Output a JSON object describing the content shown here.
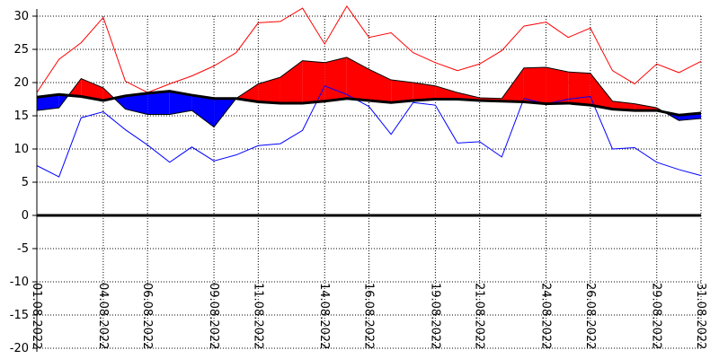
{
  "chart_data": {
    "type": "area",
    "title": "",
    "xlabel": "",
    "ylabel": "",
    "ylim": [
      -20,
      30
    ],
    "yticks": [
      -20,
      -15,
      -10,
      -5,
      0,
      5,
      10,
      15,
      20,
      25,
      30
    ],
    "xticks": [
      "01.08.2022",
      "04.08.2022",
      "06.08.2022",
      "09.08.2022",
      "11.08.2022",
      "14.08.2022",
      "16.08.2022",
      "19.08.2022",
      "21.08.2022",
      "24.08.2022",
      "26.08.2022",
      "29.08.2022",
      "31.08.2022"
    ],
    "grid": true,
    "colors": {
      "max_line": "#ff0000",
      "min_line": "#0000ff",
      "above_fill": "#ff0000",
      "below_fill": "#0000ff",
      "normal_line": "#000000",
      "zero_line": "#000000",
      "grid": "#000000",
      "axis": "#000000"
    },
    "days": [
      "01.08.2022",
      "02.08.2022",
      "03.08.2022",
      "04.08.2022",
      "05.08.2022",
      "06.08.2022",
      "07.08.2022",
      "08.08.2022",
      "09.08.2022",
      "10.08.2022",
      "11.08.2022",
      "12.08.2022",
      "13.08.2022",
      "14.08.2022",
      "15.08.2022",
      "16.08.2022",
      "17.08.2022",
      "18.08.2022",
      "19.08.2022",
      "20.08.2022",
      "21.08.2022",
      "22.08.2022",
      "23.08.2022",
      "24.08.2022",
      "25.08.2022",
      "26.08.2022",
      "27.08.2022",
      "28.08.2022",
      "29.08.2022",
      "30.08.2022",
      "31.08.2022"
    ],
    "series": [
      {
        "name": "",
        "role": "max",
        "values": [
          18.5,
          23.5,
          26,
          29.8,
          20.2,
          18.5,
          19.8,
          21,
          22.5,
          24.5,
          29,
          29.2,
          31.2,
          25.8,
          31.5,
          26.8,
          27.5,
          24.5,
          23,
          21.8,
          22.8,
          24.8,
          28.5,
          29.1,
          26.8,
          28.2,
          21.8,
          19.8,
          22.8,
          21.5,
          23.2
        ]
      },
      {
        "name": "",
        "role": "mean",
        "values": [
          15.8,
          16.2,
          20.6,
          19.2,
          16,
          15.2,
          15.2,
          15.8,
          13.3,
          17.6,
          19.8,
          20.8,
          23.3,
          23,
          23.8,
          22,
          20.4,
          20,
          19.5,
          18.5,
          17.7,
          17.6,
          22.2,
          22.3,
          21.6,
          21.4,
          17.2,
          16.8,
          16.2,
          14.3,
          14.6
        ]
      },
      {
        "name": "",
        "role": "min",
        "values": [
          7.5,
          5.8,
          14.7,
          15.6,
          12.9,
          10.6,
          8,
          10.3,
          8.2,
          9.1,
          10.5,
          10.8,
          12.8,
          19.5,
          18.2,
          16.4,
          12.2,
          17,
          16.6,
          10.9,
          11.1,
          8.8,
          17.6,
          16.8,
          17.5,
          17.9,
          10,
          10.2,
          8,
          6.9,
          6
        ]
      },
      {
        "name": "",
        "role": "normal",
        "values": [
          17.8,
          18.2,
          17.9,
          17.3,
          18,
          18.4,
          18.7,
          18.1,
          17.6,
          17.6,
          17.1,
          16.9,
          16.9,
          17.2,
          17.6,
          17.3,
          17,
          17.3,
          17.5,
          17.5,
          17.3,
          17.2,
          17.1,
          16.8,
          16.9,
          16.6,
          16,
          15.8,
          15.8,
          15.1,
          15.4
        ]
      }
    ]
  }
}
